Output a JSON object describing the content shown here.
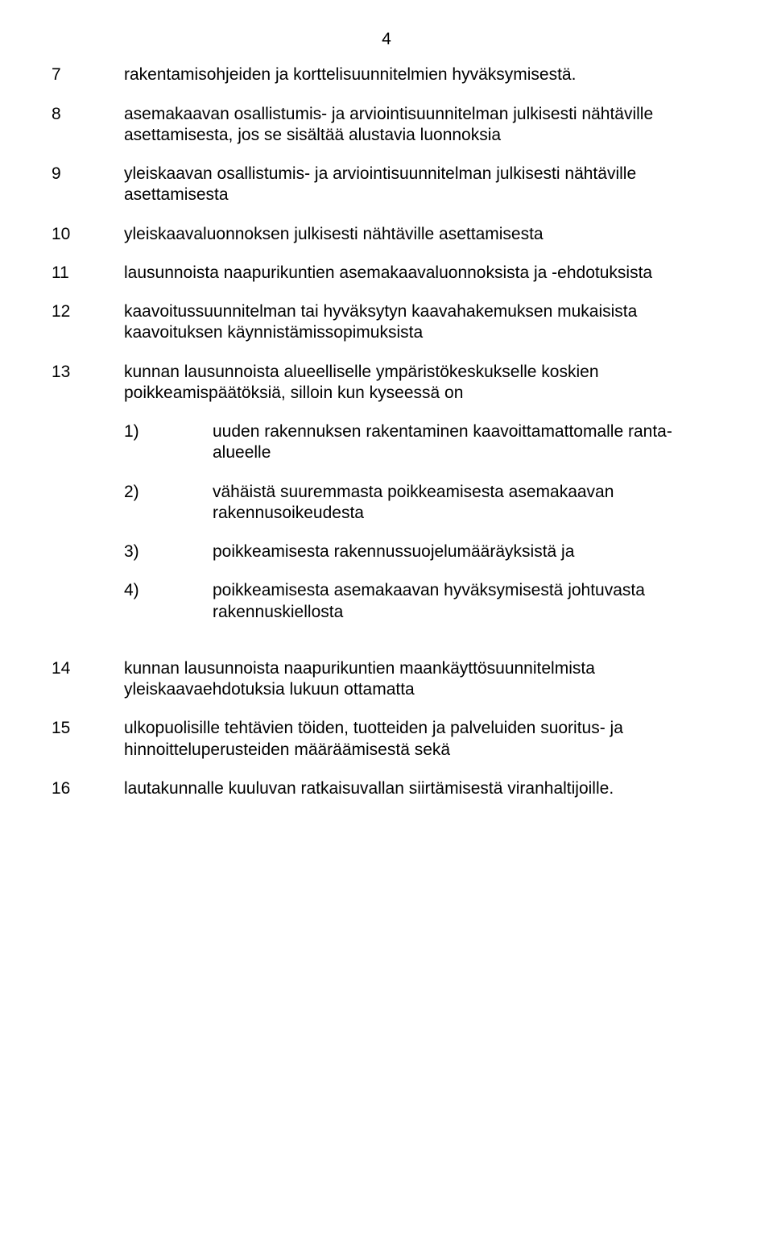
{
  "page_number": "4",
  "items": [
    {
      "num": "7",
      "text": "rakentamisohjeiden ja korttelisuunnitelmien hyväksymisestä."
    },
    {
      "num": "8",
      "text": "asemakaavan osallistumis- ja arviointisuunnitelman julkisesti nähtäville asettamisesta, jos se sisältää alustavia luonnoksia"
    },
    {
      "num": "9",
      "text": "yleiskaavan osallistumis- ja arviointisuunnitelman julkisesti nähtäville asettamisesta"
    },
    {
      "num": "10",
      "text": "yleiskaavaluonnoksen julkisesti nähtäville asettamisesta"
    },
    {
      "num": "11",
      "text": "lausunnoista naapurikuntien asemakaavaluonnoksista ja -ehdotuksista"
    },
    {
      "num": "12",
      "text": "kaavoitussuunnitelman tai hyväksytyn kaavahakemuksen mukaisista kaavoituksen käynnistämissopimuksista"
    },
    {
      "num": "13",
      "text": "kunnan lausunnoista alueelliselle ympäristökeskukselle koskien poikkeamispäätöksiä, silloin kun kyseessä on",
      "subitems": [
        {
          "num": "1)",
          "text": "uuden rakennuksen rakentaminen kaavoittamattomalle ranta-alueelle"
        },
        {
          "num": "2)",
          "text": "vähäistä suuremmasta poikkeamisesta asemakaavan rakennusoikeudesta"
        },
        {
          "num": "3)",
          "text": "poikkeamisesta rakennussuojelumääräyksistä ja"
        },
        {
          "num": "4)",
          "text": "poikkeamisesta asemakaavan hyväksymisestä johtuvasta rakennuskiellosta"
        }
      ]
    },
    {
      "num": "14",
      "text": "kunnan lausunnoista naapurikuntien maankäyttösuunnitelmista yleiskaavaehdotuksia lukuun ottamatta"
    },
    {
      "num": "15",
      "text": "ulkopuolisille tehtävien töiden, tuotteiden ja palveluiden suoritus- ja hinnoitteluperusteiden määräämisestä sekä"
    },
    {
      "num": "16",
      "text": "lautakunnalle kuuluvan ratkaisuvallan siirtämisestä viranhaltijoille."
    }
  ]
}
